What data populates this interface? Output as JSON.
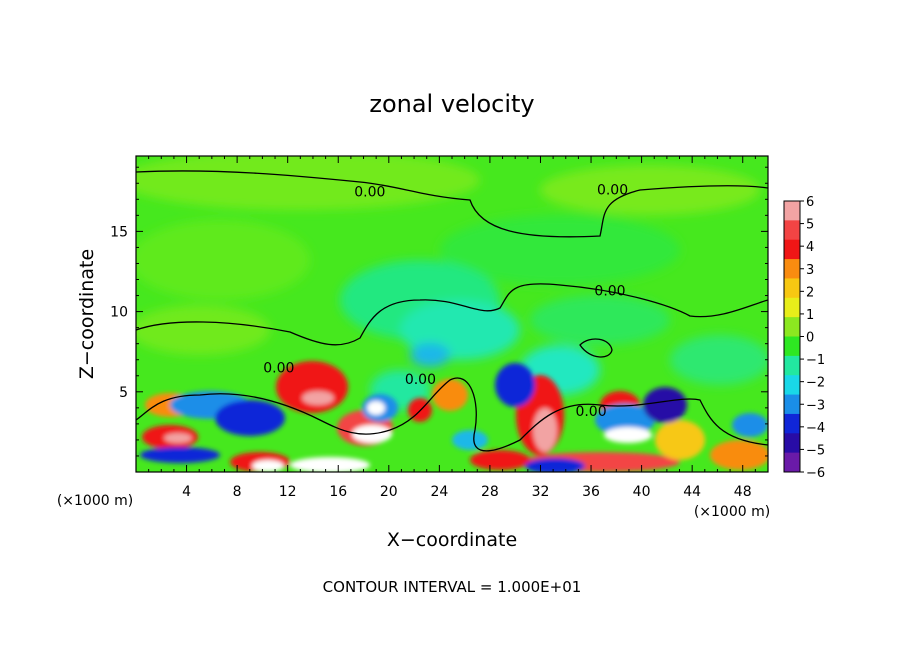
{
  "chart_data": {
    "type": "heatmap",
    "title": "zonal velocity",
    "xlabel": "X−coordinate",
    "ylabel": "Z−coordinate",
    "x_unit_left": "(×1000 m)",
    "x_unit_right": "(×1000 m)",
    "footer": "CONTOUR INTERVAL = 1.000E+01",
    "xlim": [
      0,
      50
    ],
    "ylim": [
      0,
      19.7
    ],
    "x_ticks": [
      4,
      8,
      12,
      16,
      20,
      24,
      28,
      32,
      36,
      40,
      44,
      48
    ],
    "y_ticks": [
      5,
      10,
      15
    ],
    "colorbar": {
      "ticks": [
        6,
        5,
        4,
        3,
        2,
        1,
        0,
        -1,
        -2,
        -3,
        -4,
        -5,
        -6
      ],
      "colors": [
        "#f2a3a3",
        "#f34444",
        "#f01616",
        "#f98c10",
        "#f7c812",
        "#e8ee1a",
        "#8ce820",
        "#2ee822",
        "#22e8a0",
        "#19d8e8",
        "#1a8ee8",
        "#1026d8",
        "#280ca6",
        "#6a1aa8"
      ]
    },
    "contour_labels": [
      {
        "text": "0.00",
        "x": 18.5,
        "z": 17.5
      },
      {
        "text": "0.00",
        "x": 37.7,
        "z": 17.6
      },
      {
        "text": "0.00",
        "x": 37.5,
        "z": 11.3
      },
      {
        "text": "0.00",
        "x": 11.3,
        "z": 6.5
      },
      {
        "text": "0.00",
        "x": 22.5,
        "z": 5.8
      },
      {
        "text": "0.00",
        "x": 36.0,
        "z": 3.8
      }
    ]
  }
}
